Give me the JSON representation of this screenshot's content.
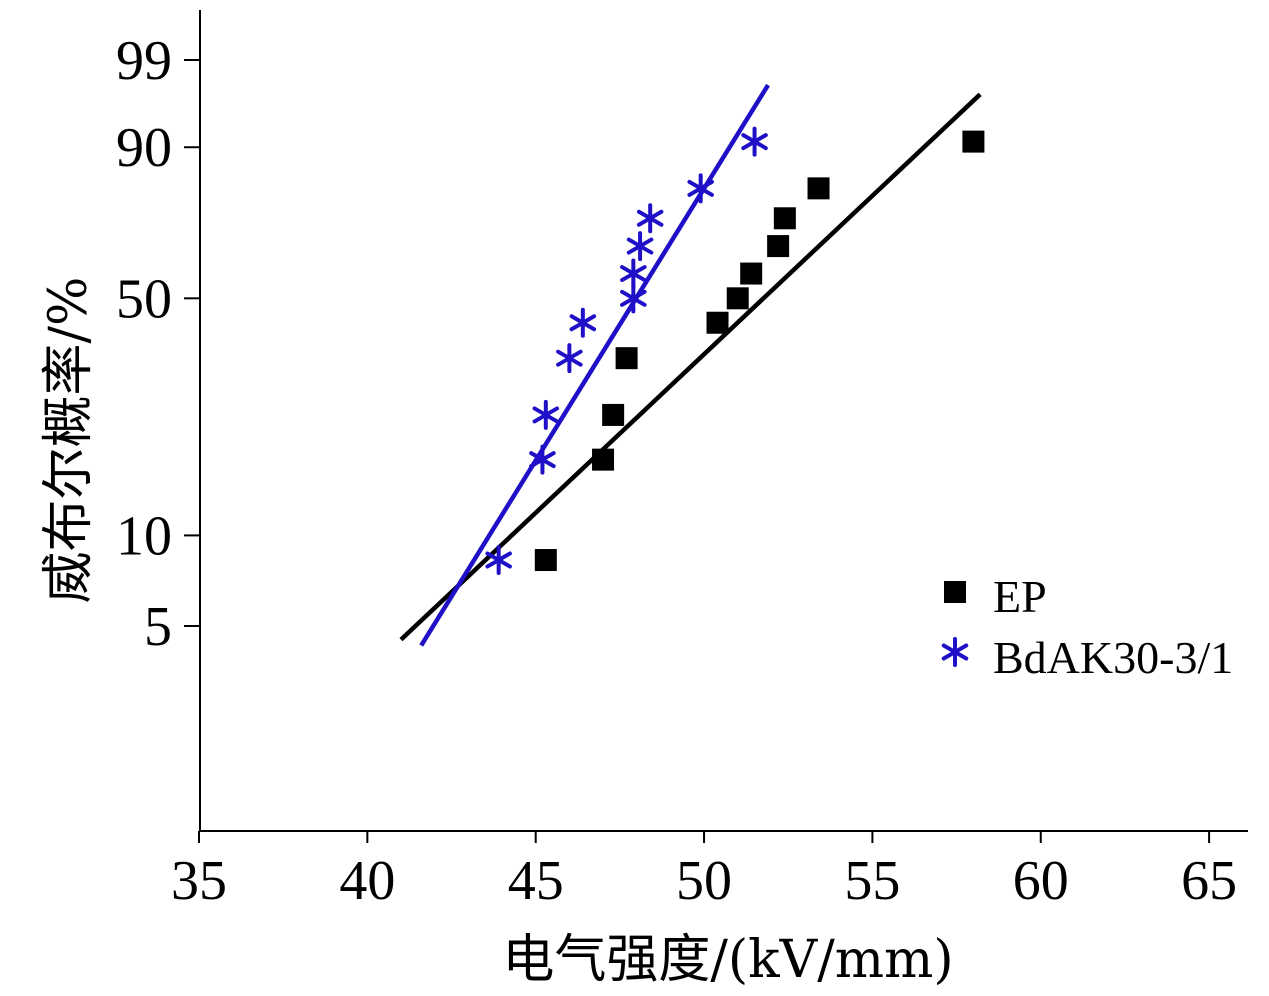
{
  "chart_data": {
    "type": "scatter",
    "title": "",
    "xlabel": "电气强度/(kV/mm)",
    "ylabel": "威布尔概率/%",
    "x_range": [
      35,
      65
    ],
    "x_ticks": [
      "35",
      "40",
      "45",
      "50",
      "55",
      "60",
      "65"
    ],
    "y_scale": "weibull",
    "y_ticks": [
      "5",
      "10",
      "50",
      "90",
      "99"
    ],
    "grid": false,
    "legend_position": "right",
    "series": [
      {
        "name": "EP",
        "marker": "square",
        "color": "#000000",
        "points": [
          {
            "x": 45.3,
            "y": 8.3
          },
          {
            "x": 47.0,
            "y": 17.5
          },
          {
            "x": 47.3,
            "y": 24.0
          },
          {
            "x": 47.7,
            "y": 35.0
          },
          {
            "x": 50.4,
            "y": 43.5
          },
          {
            "x": 51.0,
            "y": 50.0
          },
          {
            "x": 51.4,
            "y": 57.0
          },
          {
            "x": 52.2,
            "y": 65.0
          },
          {
            "x": 52.4,
            "y": 73.0
          },
          {
            "x": 53.4,
            "y": 81.0
          },
          {
            "x": 58.0,
            "y": 91.0
          }
        ],
        "fit": [
          {
            "x": 41.0,
            "y": 4.5
          },
          {
            "x": 58.2,
            "y": 97.0
          }
        ]
      },
      {
        "name": "BdAK30-3/1",
        "marker": "asterisk",
        "color": "#1f10c8",
        "points": [
          {
            "x": 43.9,
            "y": 8.3
          },
          {
            "x": 45.2,
            "y": 17.5
          },
          {
            "x": 45.3,
            "y": 24.0
          },
          {
            "x": 46.0,
            "y": 35.0
          },
          {
            "x": 46.4,
            "y": 43.5
          },
          {
            "x": 47.9,
            "y": 50.0
          },
          {
            "x": 47.9,
            "y": 57.0
          },
          {
            "x": 48.1,
            "y": 65.0
          },
          {
            "x": 48.4,
            "y": 73.0
          },
          {
            "x": 49.9,
            "y": 81.0
          },
          {
            "x": 51.5,
            "y": 91.0
          }
        ],
        "fit": [
          {
            "x": 41.6,
            "y": 4.3
          },
          {
            "x": 51.9,
            "y": 97.7
          }
        ]
      }
    ]
  }
}
